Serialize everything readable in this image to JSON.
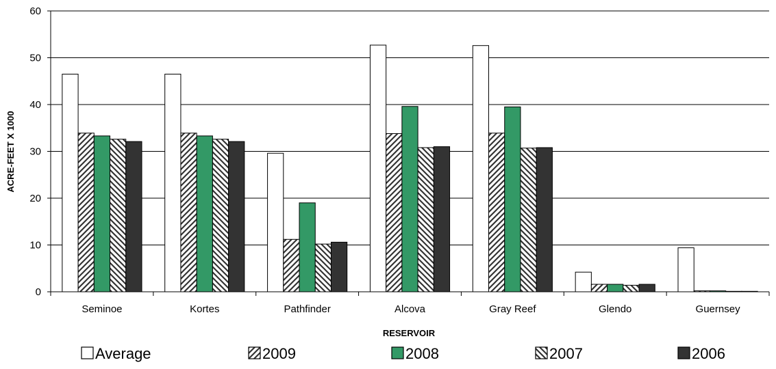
{
  "chart_data": {
    "type": "bar",
    "title": "",
    "xlabel": "RESERVOIR",
    "ylabel": "ACRE-FEET X 1000",
    "ylim": [
      0,
      60
    ],
    "yticks": [
      0,
      10,
      20,
      30,
      40,
      50,
      60
    ],
    "grid": "horizontal",
    "legend_position": "bottom",
    "categories": [
      "Seminoe",
      "Kortes",
      "Pathfinder",
      "Alcova",
      "Gray Reef",
      "Glendo",
      "Guernsey"
    ],
    "series": [
      {
        "name": "Average",
        "fill": "#ffffff",
        "pattern": "solid",
        "values": [
          46.5,
          46.5,
          29.6,
          52.7,
          52.6,
          4.2,
          9.4
        ]
      },
      {
        "name": "2009",
        "fill": "#ffffff",
        "pattern": "diagonal-forward",
        "values": [
          33.9,
          33.9,
          11.2,
          33.8,
          33.9,
          1.6,
          0.2
        ]
      },
      {
        "name": "2008",
        "fill": "#339966",
        "pattern": "solid",
        "values": [
          33.3,
          33.3,
          19.0,
          39.6,
          39.5,
          1.6,
          0.2
        ]
      },
      {
        "name": "2007",
        "fill": "#ffffff",
        "pattern": "diagonal-backward",
        "values": [
          32.6,
          32.6,
          10.2,
          30.8,
          30.7,
          1.4,
          0.1
        ]
      },
      {
        "name": "2006",
        "fill": "#333333",
        "pattern": "solid",
        "values": [
          32.1,
          32.1,
          10.6,
          31.0,
          30.8,
          1.6,
          0.1
        ]
      }
    ]
  }
}
